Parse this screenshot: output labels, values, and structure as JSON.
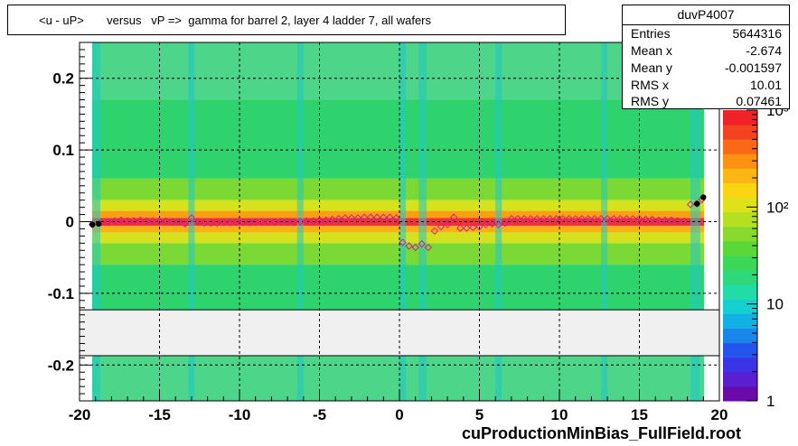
{
  "title": "<u - uP>       versus   vP =>  gamma for barrel 2, layer 4 ladder 7, all wafers",
  "x_title": "cuProductionMinBias_FullField.root",
  "stats": {
    "name": "duvP4007",
    "rows": [
      {
        "label": "Entries",
        "value": "5644316"
      },
      {
        "label": "Mean x",
        "value": "-2.674"
      },
      {
        "label": "Mean y",
        "value": "-0.001597"
      },
      {
        "label": "RMS x",
        "value": "10.01"
      },
      {
        "label": "RMS y",
        "value": "0.07461"
      }
    ]
  },
  "chart_data": {
    "type": "heatmap",
    "title": "<u - uP>       versus   vP =>  gamma for barrel 2, layer 4 ladder 7, all wafers",
    "xlabel": "cuProductionMinBias_FullField.root",
    "ylabel": "",
    "xlim": [
      -20,
      20
    ],
    "ylim": [
      -0.25,
      0.25
    ],
    "x_ticks": [
      -20,
      -15,
      -10,
      -5,
      0,
      5,
      10,
      15,
      20
    ],
    "y_ticks": [
      -0.2,
      -0.1,
      0,
      0.1,
      0.2
    ],
    "y_tick_labels": [
      "-0.2",
      "-0.1",
      "0",
      "0.1",
      "0.2"
    ],
    "grid": true,
    "colorbar": {
      "scale": "log",
      "range": [
        1,
        1000
      ],
      "tick_labels": [
        "1",
        "10",
        "10²",
        "10³"
      ]
    },
    "profile_points": [
      {
        "x": -19.2,
        "y": -0.004
      },
      {
        "x": -18.6,
        "y": -0.001
      },
      {
        "x": -18.2,
        "y": 0.0
      },
      {
        "x": -17.8,
        "y": 0.001
      },
      {
        "x": -17.4,
        "y": 0.002
      },
      {
        "x": -17.0,
        "y": 0.001
      },
      {
        "x": -16.6,
        "y": 0.001
      },
      {
        "x": -16.2,
        "y": 0.002
      },
      {
        "x": -15.8,
        "y": 0.001
      },
      {
        "x": -15.4,
        "y": 0.001
      },
      {
        "x": -15.0,
        "y": 0.001
      },
      {
        "x": -14.6,
        "y": 0.001
      },
      {
        "x": -14.2,
        "y": 0.0
      },
      {
        "x": -13.8,
        "y": 0.0
      },
      {
        "x": -13.4,
        "y": -0.003
      },
      {
        "x": -13.0,
        "y": 0.005
      },
      {
        "x": -12.6,
        "y": 0.0
      },
      {
        "x": -12.2,
        "y": -0.002
      },
      {
        "x": -11.8,
        "y": -0.002
      },
      {
        "x": -11.4,
        "y": -0.002
      },
      {
        "x": -11.0,
        "y": -0.001
      },
      {
        "x": -10.6,
        "y": -0.001
      },
      {
        "x": -10.2,
        "y": -0.001
      },
      {
        "x": -9.8,
        "y": -0.001
      },
      {
        "x": -9.4,
        "y": -0.001
      },
      {
        "x": -9.0,
        "y": 0.0
      },
      {
        "x": -8.6,
        "y": 0.0
      },
      {
        "x": -8.2,
        "y": 0.0
      },
      {
        "x": -7.8,
        "y": 0.0
      },
      {
        "x": -7.4,
        "y": 0.0
      },
      {
        "x": -7.0,
        "y": 0.0
      },
      {
        "x": -6.6,
        "y": 0.0
      },
      {
        "x": -6.2,
        "y": 0.0
      },
      {
        "x": -5.8,
        "y": 0.001
      },
      {
        "x": -5.4,
        "y": 0.001
      },
      {
        "x": -5.0,
        "y": 0.002
      },
      {
        "x": -4.6,
        "y": 0.002
      },
      {
        "x": -4.2,
        "y": 0.003
      },
      {
        "x": -3.8,
        "y": 0.004
      },
      {
        "x": -3.4,
        "y": 0.005
      },
      {
        "x": -3.0,
        "y": 0.005
      },
      {
        "x": -2.6,
        "y": 0.005
      },
      {
        "x": -2.2,
        "y": 0.006
      },
      {
        "x": -1.8,
        "y": 0.006
      },
      {
        "x": -1.4,
        "y": 0.006
      },
      {
        "x": -1.0,
        "y": 0.006
      },
      {
        "x": -0.6,
        "y": 0.006
      },
      {
        "x": -0.2,
        "y": 0.005
      },
      {
        "x": 0.2,
        "y": -0.029
      },
      {
        "x": 0.6,
        "y": -0.034
      },
      {
        "x": 1.0,
        "y": -0.036
      },
      {
        "x": 1.4,
        "y": -0.031
      },
      {
        "x": 1.8,
        "y": -0.036
      },
      {
        "x": 2.2,
        "y": -0.013
      },
      {
        "x": 2.6,
        "y": -0.007
      },
      {
        "x": 3.0,
        "y": -0.004
      },
      {
        "x": 3.4,
        "y": 0.006
      },
      {
        "x": 3.8,
        "y": -0.009
      },
      {
        "x": 4.2,
        "y": -0.009
      },
      {
        "x": 4.6,
        "y": -0.008
      },
      {
        "x": 5.0,
        "y": -0.007
      },
      {
        "x": 5.4,
        "y": -0.004
      },
      {
        "x": 5.8,
        "y": -0.003
      },
      {
        "x": 6.2,
        "y": -0.004
      },
      {
        "x": 6.6,
        "y": -0.002
      },
      {
        "x": 7.0,
        "y": 0.004
      },
      {
        "x": 7.4,
        "y": 0.004
      },
      {
        "x": 7.8,
        "y": 0.004
      },
      {
        "x": 8.2,
        "y": 0.004
      },
      {
        "x": 8.6,
        "y": 0.004
      },
      {
        "x": 9.0,
        "y": 0.004
      },
      {
        "x": 9.4,
        "y": 0.004
      },
      {
        "x": 9.8,
        "y": 0.004
      },
      {
        "x": 10.2,
        "y": 0.004
      },
      {
        "x": 10.6,
        "y": 0.004
      },
      {
        "x": 11.0,
        "y": 0.004
      },
      {
        "x": 11.4,
        "y": 0.004
      },
      {
        "x": 11.8,
        "y": 0.004
      },
      {
        "x": 12.2,
        "y": 0.004
      },
      {
        "x": 12.6,
        "y": 0.004
      },
      {
        "x": 13.0,
        "y": 0.004
      },
      {
        "x": 13.4,
        "y": 0.004
      },
      {
        "x": 13.8,
        "y": 0.004
      },
      {
        "x": 14.2,
        "y": 0.004
      },
      {
        "x": 14.6,
        "y": 0.004
      },
      {
        "x": 15.0,
        "y": 0.004
      },
      {
        "x": 15.4,
        "y": 0.003
      },
      {
        "x": 15.8,
        "y": 0.003
      },
      {
        "x": 16.2,
        "y": 0.002
      },
      {
        "x": 16.6,
        "y": 0.002
      },
      {
        "x": 17.0,
        "y": 0.002
      },
      {
        "x": 17.4,
        "y": 0.001
      },
      {
        "x": 17.8,
        "y": 0.001
      },
      {
        "x": 18.2,
        "y": 0.024
      },
      {
        "x": 18.6,
        "y": 0.025
      },
      {
        "x": 18.9,
        "y": 0.031
      }
    ],
    "filled_points": [
      {
        "x": -19.2,
        "y": -0.004
      },
      {
        "x": -18.8,
        "y": -0.003
      },
      {
        "x": 18.6,
        "y": 0.025
      },
      {
        "x": 19.0,
        "y": 0.034
      }
    ]
  }
}
